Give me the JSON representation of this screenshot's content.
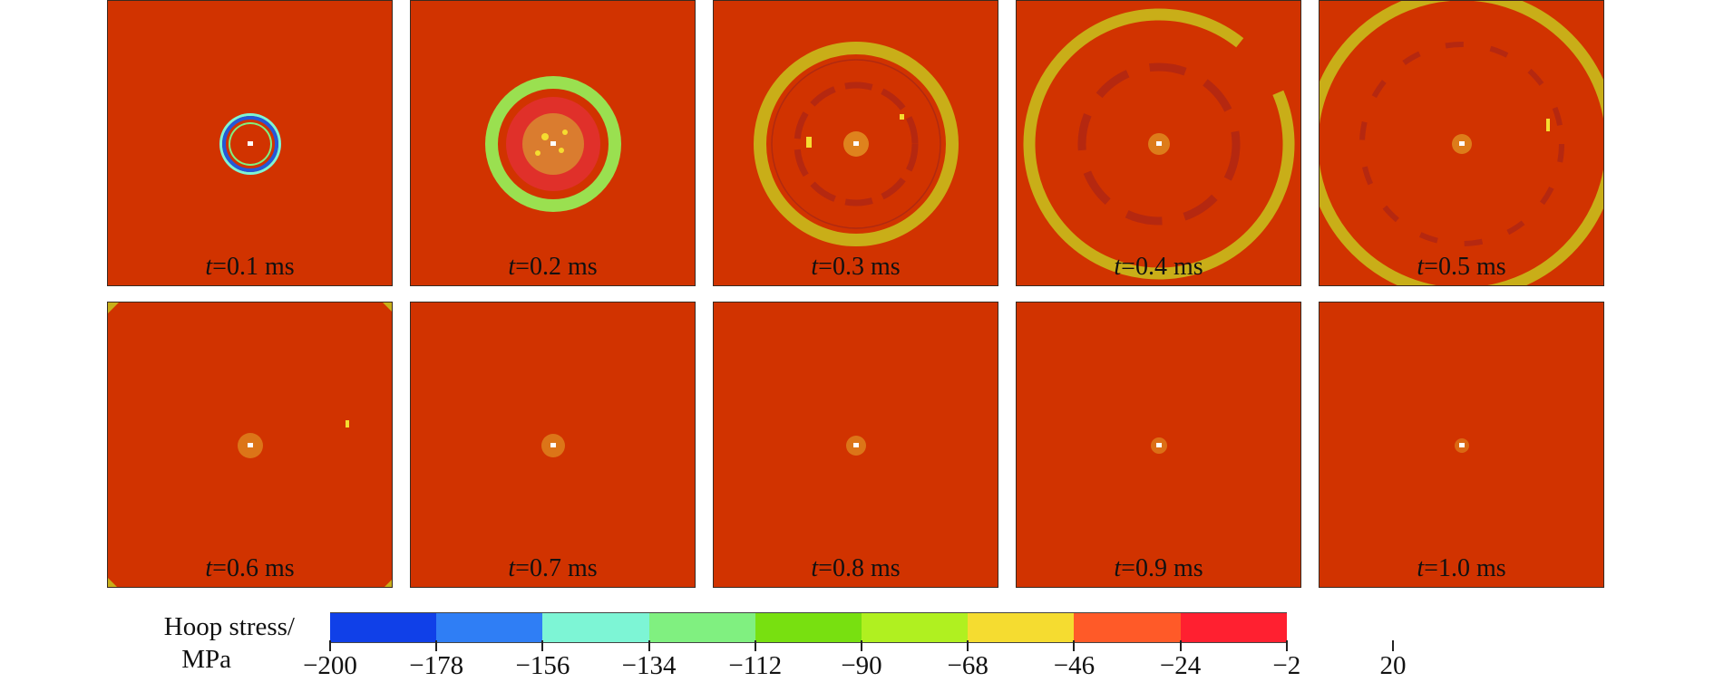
{
  "panels": [
    {
      "time_var": "t",
      "time_text": "=0.1 ms"
    },
    {
      "time_var": "t",
      "time_text": "=0.2 ms"
    },
    {
      "time_var": "t",
      "time_text": "=0.3 ms"
    },
    {
      "time_var": "t",
      "time_text": "=0.4 ms"
    },
    {
      "time_var": "t",
      "time_text": "=0.5 ms"
    },
    {
      "time_var": "t",
      "time_text": "=0.6 ms"
    },
    {
      "time_var": "t",
      "time_text": "=0.7 ms"
    },
    {
      "time_var": "t",
      "time_text": "=0.8 ms"
    },
    {
      "time_var": "t",
      "time_text": "=0.9 ms"
    },
    {
      "time_var": "t",
      "time_text": "=1.0 ms"
    }
  ],
  "legend": {
    "title_line1": "Hoop stress/",
    "title_line2": "MPa",
    "colors": [
      "#1040e8",
      "#2f7ef5",
      "#7df5d5",
      "#80f080",
      "#78e010",
      "#b0f020",
      "#f5dc30",
      "#ff5a28",
      "#ff2030"
    ],
    "tick_labels": [
      "−200",
      "−178",
      "−156",
      "−134",
      "−112",
      "−90",
      "−68",
      "−46",
      "−24",
      "−2",
      "20"
    ]
  },
  "colors": {
    "background_field": "#d13300",
    "wavefront_ring": "#c9ae18",
    "pale_green_ring": "#9ae050",
    "blue_ring": "#2458d8",
    "center_damage": "#e8b830"
  }
}
